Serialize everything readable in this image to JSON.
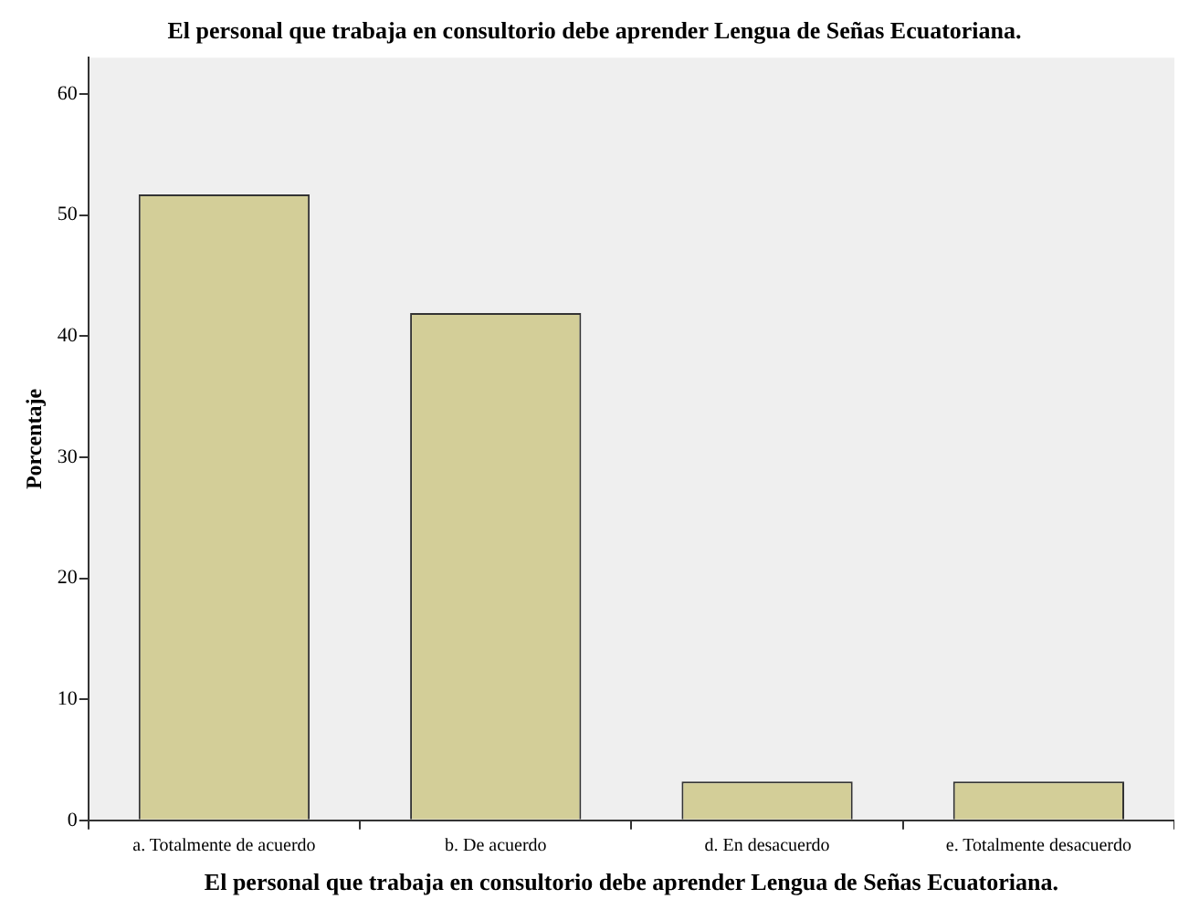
{
  "chart_data": {
    "type": "bar",
    "title": "El personal que trabaja en consultorio debe aprender Lengua de Señas Ecuatoriana.",
    "xlabel": "El personal que trabaja en consultorio debe aprender Lengua de Señas Ecuatoriana.",
    "ylabel": "Porcentaje",
    "categories": [
      "a. Totalmente de acuerdo",
      "b. De acuerdo",
      "d. En desacuerdo",
      "e. Totalmente desacuerdo"
    ],
    "values": [
      51.7,
      41.9,
      3.2,
      3.2
    ],
    "color": "#d3ce98",
    "ylim": [
      0,
      63
    ],
    "yticks": [
      0,
      10,
      20,
      30,
      40,
      50,
      60
    ],
    "grid": false,
    "legend": false
  }
}
